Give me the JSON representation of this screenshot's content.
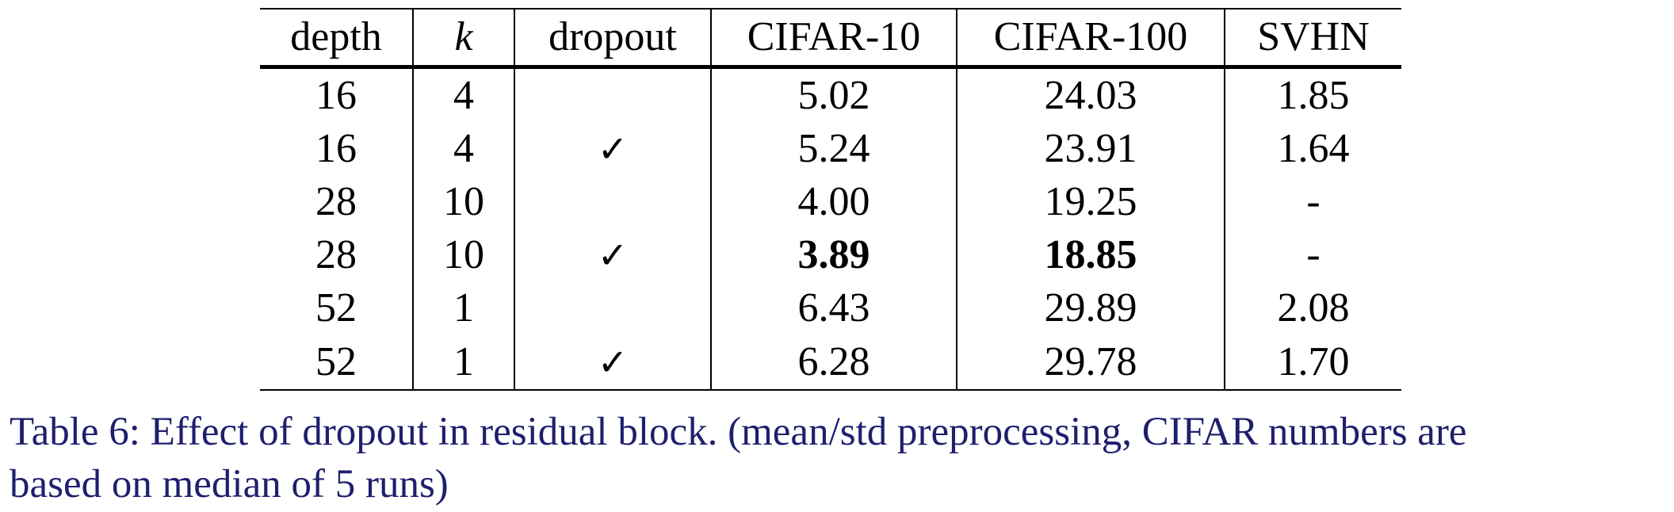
{
  "table": {
    "headers": [
      "depth",
      "k",
      "dropout",
      "CIFAR-10",
      "CIFAR-100",
      "SVHN"
    ],
    "rows": [
      {
        "depth": "16",
        "k": "4",
        "dropout": "",
        "cifar10": "5.02",
        "cifar100": "24.03",
        "svhn": "1.85"
      },
      {
        "depth": "16",
        "k": "4",
        "dropout": "✓",
        "cifar10": "5.24",
        "cifar100": "23.91",
        "svhn": "1.64"
      },
      {
        "depth": "28",
        "k": "10",
        "dropout": "",
        "cifar10": "4.00",
        "cifar100": "19.25",
        "svhn": "-"
      },
      {
        "depth": "28",
        "k": "10",
        "dropout": "✓",
        "cifar10": "3.89",
        "cifar100": "18.85",
        "svhn": "-"
      },
      {
        "depth": "52",
        "k": "1",
        "dropout": "",
        "cifar10": "6.43",
        "cifar100": "29.89",
        "svhn": "2.08"
      },
      {
        "depth": "52",
        "k": "1",
        "dropout": "✓",
        "cifar10": "6.28",
        "cifar100": "29.78",
        "svhn": "1.70"
      }
    ]
  },
  "caption": {
    "line1": "Table 6: Effect of dropout in residual block. (mean/std preprocessing, CIFAR numbers are",
    "line2": "based on median of 5 runs)"
  },
  "colors": {
    "caption_text": "#1f1f6e",
    "rule": "#000000"
  }
}
